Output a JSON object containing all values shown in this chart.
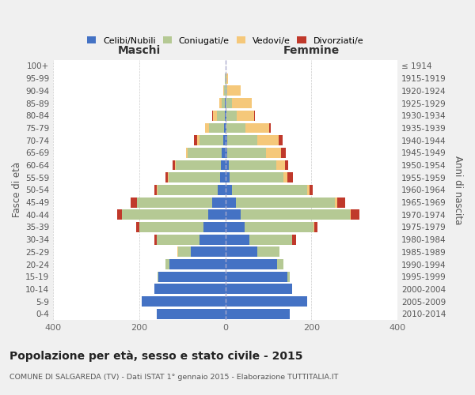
{
  "age_groups": [
    "0-4",
    "5-9",
    "10-14",
    "15-19",
    "20-24",
    "25-29",
    "30-34",
    "35-39",
    "40-44",
    "45-49",
    "50-54",
    "55-59",
    "60-64",
    "65-69",
    "70-74",
    "75-79",
    "80-84",
    "85-89",
    "90-94",
    "95-99",
    "100+"
  ],
  "birth_years": [
    "2010-2014",
    "2005-2009",
    "2000-2004",
    "1995-1999",
    "1990-1994",
    "1985-1989",
    "1980-1984",
    "1975-1979",
    "1970-1974",
    "1965-1969",
    "1960-1964",
    "1955-1959",
    "1950-1954",
    "1945-1949",
    "1940-1944",
    "1935-1939",
    "1930-1934",
    "1925-1929",
    "1920-1924",
    "1915-1919",
    "≤ 1914"
  ],
  "maschi": {
    "celibi": [
      160,
      195,
      165,
      155,
      130,
      80,
      60,
      50,
      40,
      30,
      18,
      12,
      10,
      8,
      5,
      3,
      2,
      1,
      0,
      0,
      0
    ],
    "coniugati": [
      0,
      0,
      0,
      2,
      10,
      30,
      100,
      150,
      200,
      175,
      140,
      120,
      105,
      80,
      55,
      35,
      18,
      8,
      3,
      1,
      0
    ],
    "vedovi": [
      0,
      0,
      0,
      0,
      0,
      1,
      0,
      0,
      1,
      1,
      1,
      1,
      2,
      3,
      5,
      10,
      8,
      5,
      2,
      0,
      0
    ],
    "divorziati": [
      0,
      0,
      0,
      0,
      0,
      0,
      5,
      7,
      10,
      15,
      6,
      6,
      5,
      0,
      8,
      0,
      3,
      1,
      0,
      0,
      0
    ]
  },
  "femmine": {
    "nubili": [
      150,
      190,
      155,
      145,
      120,
      75,
      55,
      45,
      35,
      25,
      15,
      10,
      8,
      5,
      4,
      2,
      2,
      1,
      0,
      0,
      0
    ],
    "coniugate": [
      0,
      0,
      0,
      5,
      15,
      50,
      100,
      160,
      255,
      230,
      175,
      125,
      110,
      90,
      70,
      45,
      25,
      15,
      5,
      2,
      0
    ],
    "vedove": [
      0,
      0,
      0,
      0,
      0,
      0,
      1,
      1,
      2,
      5,
      5,
      10,
      20,
      35,
      50,
      55,
      40,
      45,
      30,
      5,
      0
    ],
    "divorziate": [
      0,
      0,
      0,
      0,
      0,
      0,
      8,
      8,
      20,
      18,
      8,
      12,
      8,
      10,
      10,
      3,
      2,
      1,
      0,
      0,
      0
    ]
  },
  "colors": {
    "celibi": "#4472c4",
    "coniugati": "#b5c994",
    "vedovi": "#f5c87a",
    "divorziati": "#c0392b"
  },
  "title": "Popolazione per età, sesso e stato civile - 2015",
  "subtitle": "COMUNE DI SALGAREDA (TV) - Dati ISTAT 1° gennaio 2015 - Elaborazione TUTTITALIA.IT",
  "xlabel_left": "Maschi",
  "xlabel_right": "Femmine",
  "ylabel_left": "Fasce di età",
  "ylabel_right": "Anni di nascita",
  "xlim": 400,
  "legend_labels": [
    "Celibi/Nubili",
    "Coniugati/e",
    "Vedovi/e",
    "Divorziati/e"
  ],
  "bg_color": "#f0f0f0",
  "plot_bg_color": "#ffffff"
}
